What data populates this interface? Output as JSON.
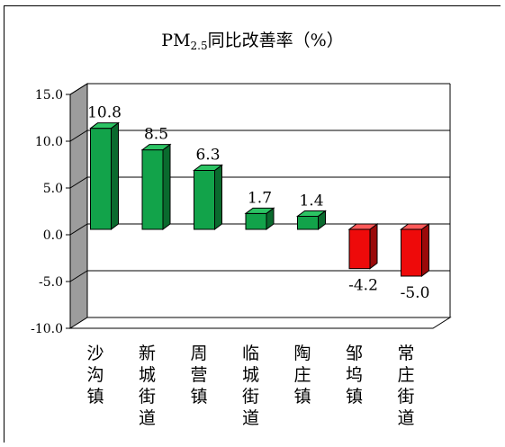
{
  "chart_data": {
    "type": "bar",
    "title": {
      "prefix": "PM",
      "subscript": "2.5",
      "suffix": "同比改善率（%）"
    },
    "categories": [
      "沙沟镇",
      "新城街道",
      "周营镇",
      "临城街道",
      "陶庄镇",
      "邹坞镇",
      "常庄街道"
    ],
    "values": [
      10.8,
      8.5,
      6.3,
      1.7,
      1.4,
      -4.2,
      -5.0
    ],
    "data_labels": [
      "10.8",
      "8.5",
      "6.3",
      "1.7",
      "1.4",
      "-4.2",
      "-5.0"
    ],
    "ylim": [
      -10,
      15
    ],
    "y_ticks": [
      15,
      10,
      5,
      0,
      -5,
      -10
    ],
    "y_tick_labels": [
      "15.0",
      "10.0",
      "5.0",
      "0.0",
      "-5.0",
      "-10.0"
    ],
    "grid": true,
    "three_d": true,
    "colors": {
      "positive": "#12a34a",
      "positive_side": "#0a6a2e",
      "positive_top": "#2cc464",
      "negative": "#ee0a0a",
      "negative_side": "#9a0a0a",
      "negative_top": "#ff5a5a",
      "wall": "#9c9c9c"
    }
  }
}
